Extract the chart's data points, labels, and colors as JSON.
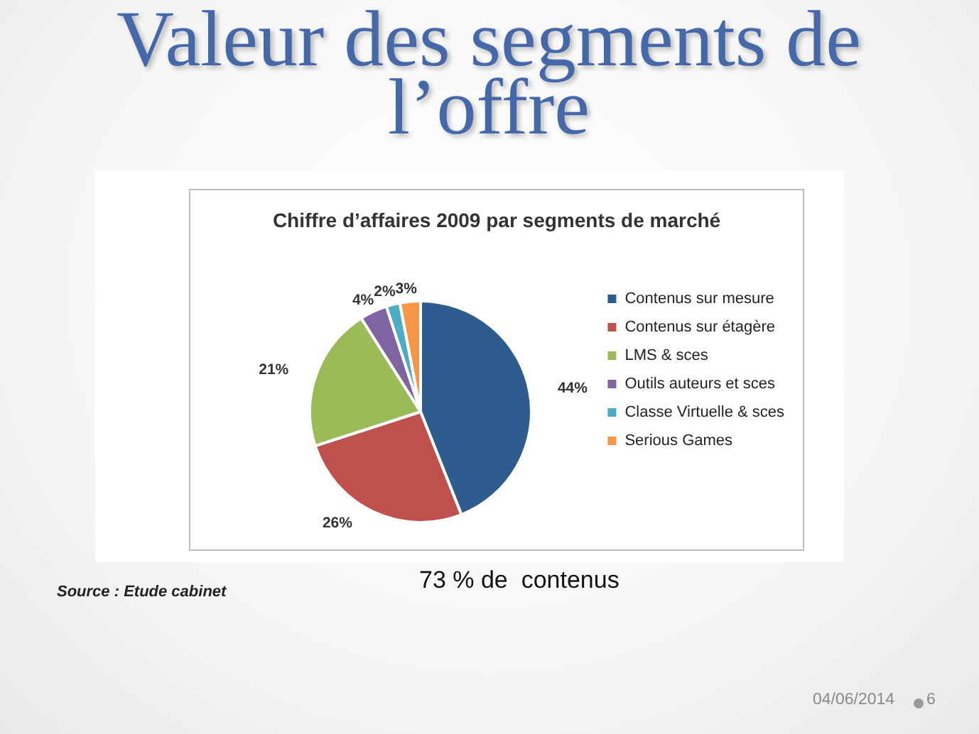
{
  "chart_data": {
    "type": "pie",
    "title": "Valeur des segments de l’offre",
    "subtitle": "Chiffre d’affaires 2009 par segments de marché",
    "categories": [
      "Contenus sur mesure",
      "Contenus sur étagère",
      "LMS & sces",
      "Outils auteurs et sces",
      "Classe Virtuelle & sces",
      "Serious Games"
    ],
    "values": [
      44,
      26,
      21,
      4,
      2,
      3
    ],
    "colors": [
      "#2e5c8f",
      "#c0504d",
      "#9bbb59",
      "#8064a2",
      "#4bacc6",
      "#f79646"
    ],
    "value_labels": [
      "44%",
      "26%",
      "21%",
      "4%",
      "2%",
      "3%"
    ],
    "legend": "right",
    "annotations": [
      "73 % de  contenus",
      "Source : Etude cabinet",
      "04/06/2014",
      "6"
    ]
  }
}
